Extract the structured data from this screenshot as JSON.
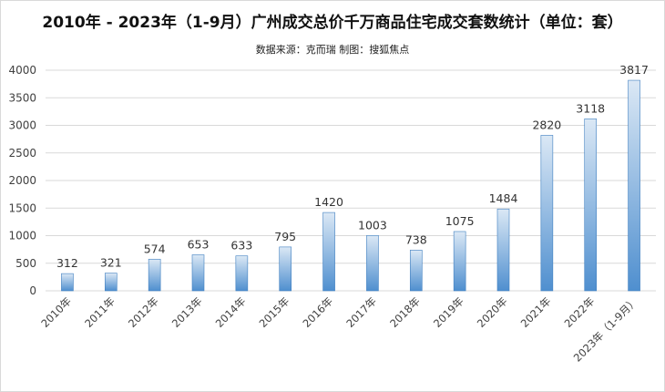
{
  "chart_data": {
    "type": "bar",
    "title": "2010年 - 2023年（1-9月）广州成交总价千万商品住宅成交套数统计（单位：套）",
    "subtitle": "数据来源：克而瑞   制图：搜狐焦点",
    "categories": [
      "2010年",
      "2011年",
      "2012年",
      "2013年",
      "2014年",
      "2015年",
      "2016年",
      "2017年",
      "2018年",
      "2019年",
      "2020年",
      "2021年",
      "2022年",
      "2023年（1-9月）"
    ],
    "values": [
      312,
      321,
      574,
      653,
      633,
      795,
      1420,
      1003,
      738,
      1075,
      1484,
      2820,
      3118,
      3817
    ],
    "yticks": [
      0,
      500,
      1000,
      1500,
      2000,
      2500,
      3000,
      3500,
      4000
    ],
    "ylim": [
      0,
      4000
    ],
    "grid": true,
    "legend": "none",
    "colors": {
      "bar_top": "#dbe8f5",
      "bar_bottom": "#4f8fcf",
      "bar_edge": "#3f7fc0",
      "grid": "#d9d9d9"
    }
  }
}
